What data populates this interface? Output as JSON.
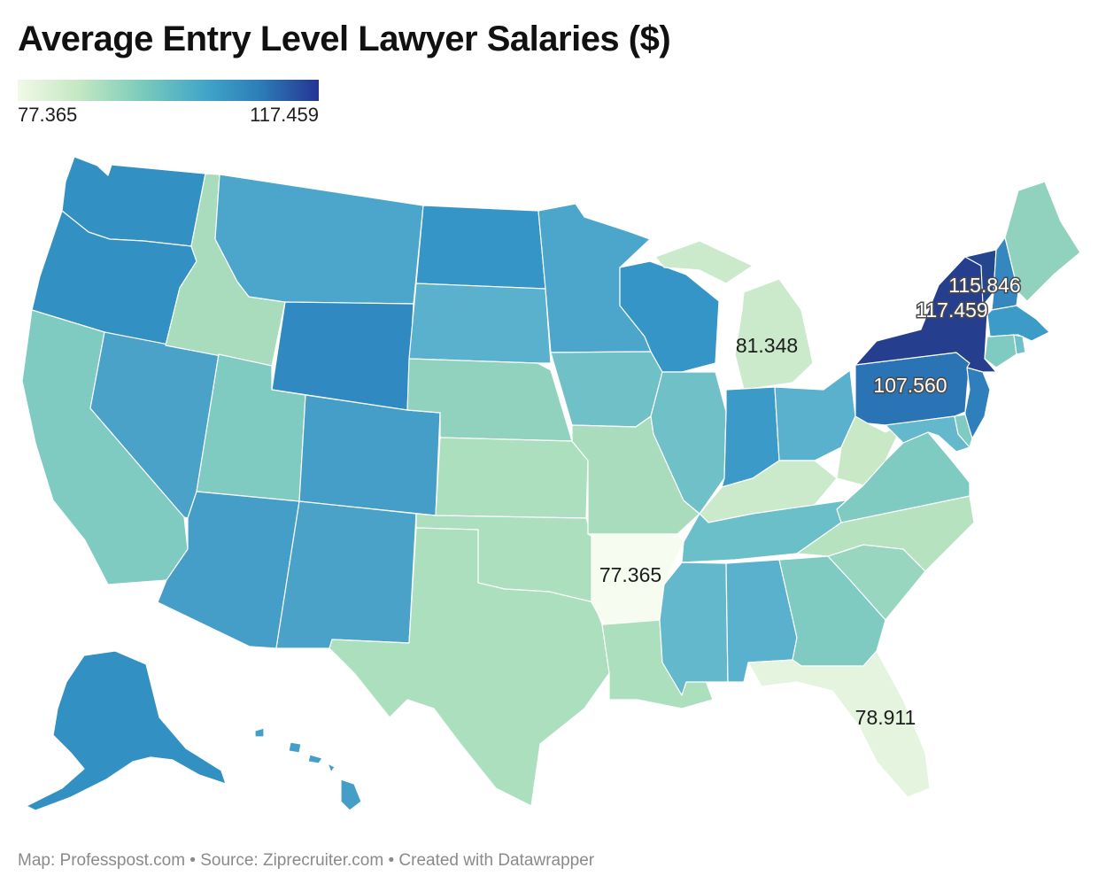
{
  "title": "Average Entry Level Lawyer Salaries ($)",
  "legend": {
    "min_label": "77.365",
    "max_label": "117.459",
    "colors": [
      "#f1f9e8",
      "#c5e8c2",
      "#7fcdbb",
      "#41a6c8",
      "#2c7fb8",
      "#253494"
    ]
  },
  "map_labels": {
    "new_york": "117.459",
    "vermont": "115.846",
    "pennsylvania": "107.560",
    "michigan": "81.348",
    "arkansas": "77.365",
    "florida": "78.911"
  },
  "footer": {
    "text": "Map: Professpost.com • Source: Ziprecruiter.com • Created with Datawrapper"
  },
  "state_colors": {
    "WA": "#3290c3",
    "OR": "#3290c3",
    "CA": "#7fcbc1",
    "NV": "#4aa2c9",
    "ID": "#a8dcbd",
    "MT": "#4ca6cb",
    "WY": "#3189c1",
    "UT": "#7fcbc1",
    "AZ": "#459ec8",
    "CO": "#459ec8",
    "NM": "#4aa2c9",
    "ND": "#3595c6",
    "SD": "#59b1cd",
    "NE": "#91d2bf",
    "KS": "#acdfbe",
    "OK": "#acdfbe",
    "TX": "#acdfbe",
    "MN": "#4ca6cb",
    "IA": "#70c0c7",
    "MO": "#a8dcbd",
    "AR": "#f7fcf0",
    "LA": "#acdfbe",
    "WI": "#3595c6",
    "IL": "#70c0c7",
    "MI": "#cbe9cb",
    "IN": "#3b9ac8",
    "OH": "#59b1cd",
    "KY": "#cbe9cb",
    "TN": "#6bbfc8",
    "MS": "#63b9cb",
    "AL": "#59b1cd",
    "GA": "#7fcbc1",
    "FL": "#e4f4de",
    "SC": "#98d6c0",
    "NC": "#b6e2c0",
    "VA": "#7fcbc1",
    "WV": "#c8e8c6",
    "PA": "#2a74b6",
    "NY": "#253f8e",
    "VT": "#24468e",
    "NH": "#3587c0",
    "ME": "#91d2bf",
    "MA": "#3d9bc8",
    "CT": "#7fcbc1",
    "RI": "#70c0c7",
    "NJ": "#2f7fbc",
    "DE": "#7fcbc1",
    "MD": "#63b9cb",
    "AK": "#3290c3",
    "HI": "#459ec8"
  }
}
